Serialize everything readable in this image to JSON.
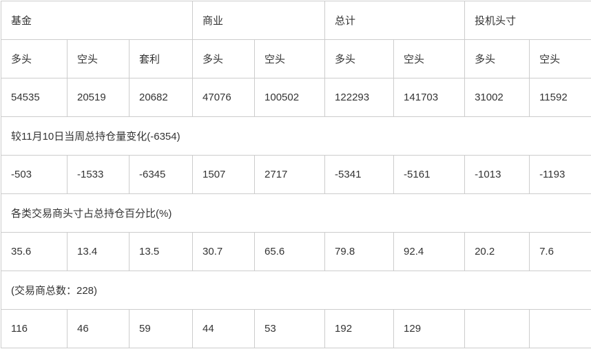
{
  "chart_data": {
    "type": "table",
    "group_headers": [
      {
        "label": "基金",
        "colspan": 3
      },
      {
        "label": "商业",
        "colspan": 2
      },
      {
        "label": "总计",
        "colspan": 2
      },
      {
        "label": "投机头寸",
        "colspan": 2
      }
    ],
    "column_headers": [
      "多头",
      "空头",
      "套利",
      "多头",
      "空头",
      "多头",
      "空头",
      "多头",
      "空头"
    ],
    "rows": {
      "positions": [
        "54535",
        "20519",
        "20682",
        "47076",
        "100502",
        "122293",
        "141703",
        "31002",
        "11592"
      ],
      "weekly_change_caption": "较11月10日当周总持仓量变化(-6354)",
      "weekly_changes": [
        "-503",
        "-1533",
        "-6345",
        "1507",
        "2717",
        "-5341",
        "-5161",
        "-1013",
        "-1193"
      ],
      "percent_caption": "各类交易商头寸占总持仓百分比(%)",
      "percents": [
        "35.6",
        "13.4",
        "13.5",
        "30.7",
        "65.6",
        "79.8",
        "92.4",
        "20.2",
        "7.6"
      ],
      "traders_caption": "(交易商总数：228)",
      "trader_counts": [
        "116",
        "46",
        "59",
        "44",
        "53",
        "192",
        "129",
        "",
        ""
      ]
    },
    "colors": {
      "border": "#cccccc",
      "text": "#333333",
      "background": "#ffffff"
    }
  }
}
